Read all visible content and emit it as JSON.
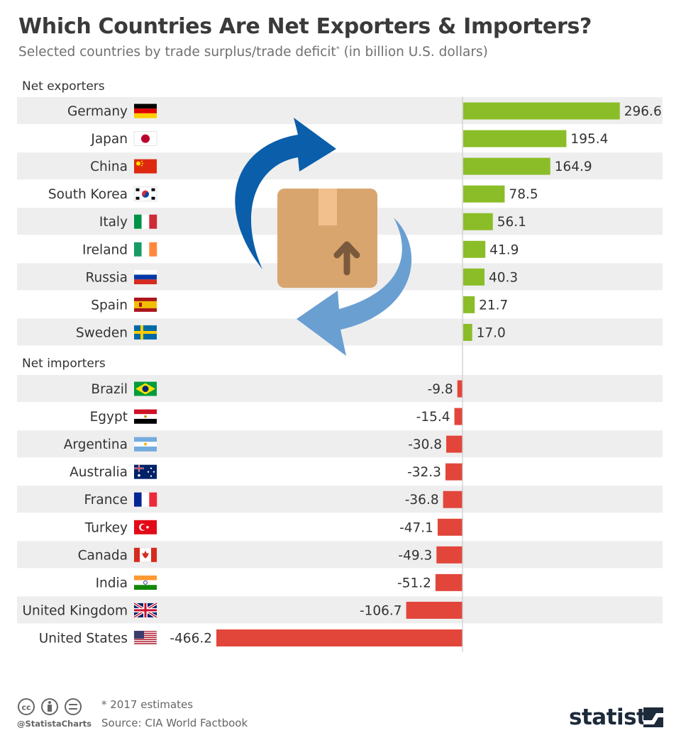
{
  "title": "Which Countries Are Net Exporters & Importers?",
  "subtitle": "Selected countries by trade surplus/trade deficit",
  "subtitle_sup": "*",
  "subtitle_unit": " (in billion U.S. dollars)",
  "colors": {
    "exporter_bar": "#8bbd28",
    "importer_bar": "#e2463a",
    "stripe": "#eeeeee",
    "arrow_dark": "#0a5eaa",
    "arrow_light": "#6a9fd2",
    "box": "#d9a56e"
  },
  "illustration": {
    "icons": [
      "circular-arrow-dark-icon",
      "circular-arrow-light-icon",
      "package-box-icon"
    ]
  },
  "chart_data": {
    "type": "bar",
    "orientation": "horizontal",
    "grid": false,
    "groups": [
      {
        "label": "Net exporters",
        "color": "#8bbd28",
        "categories": [
          "Germany",
          "Japan",
          "China",
          "South Korea",
          "Italy",
          "Ireland",
          "Russia",
          "Spain",
          "Sweden"
        ],
        "values": [
          296.6,
          195.4,
          164.9,
          78.5,
          56.1,
          41.9,
          40.3,
          21.7,
          17.0
        ],
        "value_labels": [
          "296.6",
          "195.4",
          "164.9",
          "78.5",
          "56.1",
          "41.9",
          "40.3",
          "21.7",
          "17.0"
        ],
        "flags": [
          "germany-flag-icon",
          "japan-flag-icon",
          "china-flag-icon",
          "south-korea-flag-icon",
          "italy-flag-icon",
          "ireland-flag-icon",
          "russia-flag-icon",
          "spain-flag-icon",
          "sweden-flag-icon"
        ]
      },
      {
        "label": "Net importers",
        "color": "#e2463a",
        "categories": [
          "Brazil",
          "Egypt",
          "Argentina",
          "Australia",
          "France",
          "Turkey",
          "Canada",
          "India",
          "United Kingdom",
          "United States"
        ],
        "values": [
          -9.8,
          -15.4,
          -30.8,
          -32.3,
          -36.8,
          -47.1,
          -49.3,
          -51.2,
          -106.7,
          -466.2
        ],
        "value_labels": [
          "-9.8",
          "-15.4",
          "-30.8",
          "-32.3",
          "-36.8",
          "-47.1",
          "-49.3",
          "-51.2",
          "-106.7",
          "-466.2"
        ],
        "flags": [
          "brazil-flag-icon",
          "egypt-flag-icon",
          "argentina-flag-icon",
          "australia-flag-icon",
          "france-flag-icon",
          "turkey-flag-icon",
          "canada-flag-icon",
          "india-flag-icon",
          "united-kingdom-flag-icon",
          "united-states-flag-icon"
        ]
      }
    ],
    "title": "Which Countries Are Net Exporters & Importers?",
    "xlabel": "",
    "ylabel": "",
    "unit": "billion U.S. dollars"
  },
  "footer": {
    "note": "* 2017 estimates",
    "source": "Source: CIA World Factbook",
    "handle": "@StatistaCharts",
    "brand": "statista",
    "license_icons": [
      "cc-icon",
      "attribution-icon",
      "no-derivatives-icon"
    ]
  }
}
